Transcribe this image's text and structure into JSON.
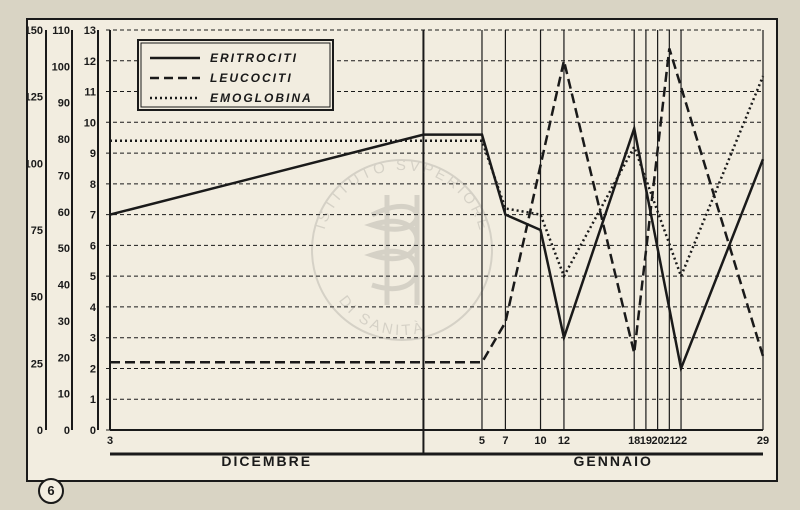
{
  "figure_number": "6",
  "months": {
    "december": "DICEMBRE",
    "january": "GENNAIO"
  },
  "legend": {
    "series1": "ERITROCITI",
    "series2": "LEUCOCITI",
    "series3": "EMOGLOBINA"
  },
  "axes": {
    "left1": {
      "values": [
        0,
        25,
        50,
        75,
        100,
        125,
        150
      ],
      "max": 150,
      "min": 0
    },
    "left2": {
      "values": [
        0,
        10,
        20,
        30,
        40,
        50,
        60,
        70,
        80,
        90,
        100,
        110
      ],
      "max": 110,
      "min": 0
    },
    "left3": {
      "values": [
        0,
        1,
        2,
        3,
        4,
        5,
        6,
        7,
        8,
        9,
        10,
        11,
        12,
        13
      ],
      "max": 13,
      "min": 0
    }
  },
  "x_ticks": {
    "december": [
      3
    ],
    "january": [
      5,
      7,
      10,
      12,
      18,
      19,
      20,
      21,
      22,
      29
    ]
  },
  "plot": {
    "x_start": 3,
    "x_split": 31,
    "x_end": 60,
    "bg": "#f2ede0",
    "line_color": "#1a1a1a",
    "grid_dash": "4 3"
  },
  "series": {
    "eritrociti": {
      "style": "solid",
      "width": 2.5,
      "scale": "left3",
      "points": [
        {
          "x": 3,
          "v": 7.0
        },
        {
          "x": 31,
          "v": 9.6
        },
        {
          "x": 36,
          "v": 9.6
        },
        {
          "x": 38,
          "v": 7.0
        },
        {
          "x": 41,
          "v": 6.5
        },
        {
          "x": 43,
          "v": 3.0
        },
        {
          "x": 49,
          "v": 9.8
        },
        {
          "x": 53,
          "v": 2.0
        },
        {
          "x": 60,
          "v": 8.8
        }
      ]
    },
    "leucociti": {
      "style": "dash",
      "dash": "10 5",
      "width": 2.5,
      "scale": "left3",
      "points": [
        {
          "x": 3,
          "v": 2.2
        },
        {
          "x": 31,
          "v": 2.2
        },
        {
          "x": 36,
          "v": 2.2
        },
        {
          "x": 38,
          "v": 3.5
        },
        {
          "x": 43,
          "v": 12.0
        },
        {
          "x": 49,
          "v": 2.5
        },
        {
          "x": 52,
          "v": 12.4
        },
        {
          "x": 60,
          "v": 2.4
        }
      ]
    },
    "emoglobina": {
      "style": "dot",
      "dash": "2 3",
      "width": 2.5,
      "scale": "left3",
      "points": [
        {
          "x": 3,
          "v": 9.4
        },
        {
          "x": 31,
          "v": 9.4
        },
        {
          "x": 36,
          "v": 9.4
        },
        {
          "x": 38,
          "v": 7.2
        },
        {
          "x": 41,
          "v": 7.0
        },
        {
          "x": 43,
          "v": 5.0
        },
        {
          "x": 49,
          "v": 9.2
        },
        {
          "x": 53,
          "v": 5.0
        },
        {
          "x": 60,
          "v": 11.5
        }
      ]
    }
  },
  "watermark": {
    "text_top": "ISTITUTO SVPERIORE",
    "text_bottom": "DI SANITÀ"
  }
}
